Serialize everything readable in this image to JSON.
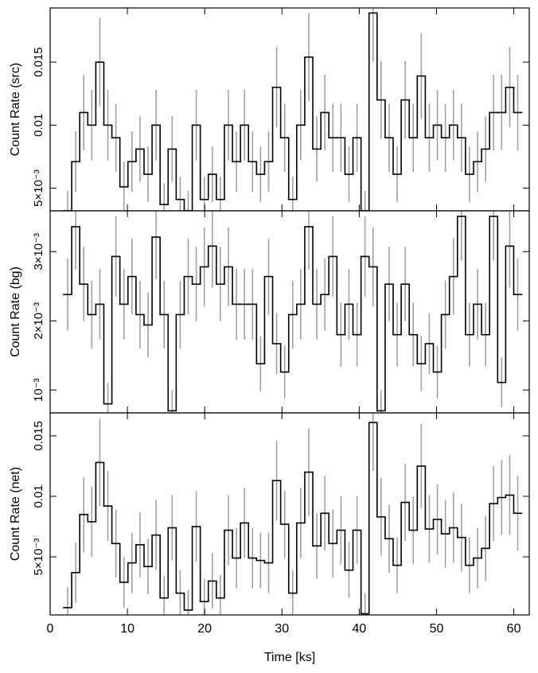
{
  "chart_data": [
    {
      "type": "step",
      "ylabel": "Count Rate (src)",
      "color": "#000000",
      "error_color": "#a0a0a0",
      "xlim": [
        0,
        62
      ],
      "xticks": [
        0,
        10,
        20,
        30,
        40,
        50,
        60
      ],
      "ylim": [
        0.0032,
        0.0193
      ],
      "yticks": [
        {
          "value": 0.005,
          "label": "5×10⁻³"
        },
        0.01,
        0.015
      ],
      "x": [
        2.27,
        3.31,
        4.35,
        5.39,
        6.43,
        7.47,
        8.51,
        9.55,
        10.59,
        11.63,
        12.67,
        13.71,
        14.75,
        15.79,
        16.83,
        17.87,
        18.91,
        19.95,
        20.99,
        22.03,
        23.07,
        24.11,
        25.15,
        26.19,
        27.23,
        28.27,
        29.31,
        30.35,
        31.39,
        32.43,
        33.47,
        34.51,
        35.55,
        36.59,
        37.63,
        38.67,
        39.71,
        40.75,
        41.79,
        42.83,
        43.87,
        44.91,
        45.95,
        46.99,
        48.03,
        49.07,
        50.11,
        51.15,
        52.19,
        53.23,
        54.27,
        55.31,
        56.35,
        57.39,
        58.43,
        59.47,
        60.51
      ],
      "values": [
        0.0032,
        0.0071,
        0.011,
        0.01,
        0.015,
        0.01,
        0.009,
        0.0051,
        0.0071,
        0.0081,
        0.0061,
        0.01,
        0.0037,
        0.0081,
        0.0041,
        0.0032,
        0.01,
        0.0041,
        0.0061,
        0.0041,
        0.01,
        0.0071,
        0.01,
        0.0071,
        0.0061,
        0.0071,
        0.013,
        0.009,
        0.0041,
        0.01,
        0.0154,
        0.0081,
        0.011,
        0.009,
        0.009,
        0.0061,
        0.009,
        0.0032,
        0.0189,
        0.012,
        0.009,
        0.0061,
        0.012,
        0.009,
        0.0139,
        0.009,
        0.01,
        0.009,
        0.01,
        0.009,
        0.0061,
        0.0071,
        0.0081,
        0.011,
        0.011,
        0.013,
        0.011
      ],
      "errors": [
        0.0016,
        0.0024,
        0.003,
        0.0028,
        0.0035,
        0.0028,
        0.0027,
        0.002,
        0.0024,
        0.0026,
        0.0022,
        0.0028,
        0.0017,
        0.0026,
        0.0018,
        0.0016,
        0.0028,
        0.0018,
        0.0022,
        0.0018,
        0.0028,
        0.0024,
        0.0028,
        0.0024,
        0.0022,
        0.0024,
        0.0032,
        0.0027,
        0.0018,
        0.0028,
        0.0035,
        0.0026,
        0.003,
        0.0027,
        0.0027,
        0.0022,
        0.0027,
        0.0016,
        0.0039,
        0.0031,
        0.0027,
        0.0022,
        0.0031,
        0.0027,
        0.0034,
        0.0027,
        0.0028,
        0.0027,
        0.0028,
        0.0027,
        0.0022,
        0.0024,
        0.0026,
        0.003,
        0.003,
        0.0032,
        0.003
      ]
    },
    {
      "type": "step",
      "ylabel": "Count Rate (bg)",
      "color": "#000000",
      "error_color": "#a0a0a0",
      "xlim": [
        0,
        62
      ],
      "xticks": [
        0,
        10,
        20,
        30,
        40,
        50,
        60
      ],
      "ylim": [
        0.00067,
        0.00359
      ],
      "yticks": [
        {
          "value": 0.001,
          "label": "10⁻³"
        },
        {
          "value": 0.002,
          "label": "2×10⁻³"
        },
        {
          "value": 0.003,
          "label": "3×10⁻³"
        }
      ],
      "x": [
        2.27,
        3.31,
        4.35,
        5.39,
        6.43,
        7.47,
        8.51,
        9.55,
        10.59,
        11.63,
        12.67,
        13.71,
        14.75,
        15.79,
        16.83,
        17.87,
        18.91,
        19.95,
        20.99,
        22.03,
        23.07,
        24.11,
        25.15,
        26.19,
        27.23,
        28.27,
        29.31,
        30.35,
        31.39,
        32.43,
        33.47,
        34.51,
        35.55,
        36.59,
        37.63,
        38.67,
        39.71,
        40.75,
        41.79,
        42.83,
        43.87,
        44.91,
        45.95,
        46.99,
        48.03,
        49.07,
        50.11,
        51.15,
        52.19,
        53.23,
        54.27,
        55.31,
        56.35,
        57.39,
        58.43,
        59.47,
        60.51
      ],
      "values": [
        0.00238,
        0.00336,
        0.00253,
        0.00209,
        0.00224,
        0.0008,
        0.00293,
        0.00224,
        0.00264,
        0.00209,
        0.00194,
        0.00321,
        0.00209,
        0.0007,
        0.00209,
        0.00264,
        0.00253,
        0.00278,
        0.00308,
        0.00253,
        0.00278,
        0.00224,
        0.00224,
        0.00224,
        0.00138,
        0.00264,
        0.00167,
        0.00126,
        0.00209,
        0.00224,
        0.00336,
        0.00224,
        0.00238,
        0.00293,
        0.0018,
        0.00224,
        0.0018,
        0.00293,
        0.00278,
        0.0007,
        0.00253,
        0.0018,
        0.00253,
        0.0018,
        0.00138,
        0.00167,
        0.00126,
        0.00209,
        0.00264,
        0.00351,
        0.0018,
        0.00224,
        0.0018,
        0.00351,
        0.00111,
        0.00308,
        0.00238
      ],
      "errors": [
        0.00052,
        0.00062,
        0.00054,
        0.00049,
        0.00051,
        0.0003,
        0.00058,
        0.00051,
        0.00055,
        0.00049,
        0.00047,
        0.00061,
        0.00049,
        0.0003,
        0.00049,
        0.00055,
        0.00054,
        0.00057,
        0.0006,
        0.00054,
        0.00057,
        0.00051,
        0.00051,
        0.00051,
        0.0004,
        0.00055,
        0.00044,
        0.00038,
        0.00049,
        0.00051,
        0.00062,
        0.00051,
        0.00052,
        0.00058,
        0.00046,
        0.00051,
        0.00046,
        0.00058,
        0.00057,
        0.0003,
        0.00054,
        0.00046,
        0.00054,
        0.00046,
        0.0004,
        0.00044,
        0.00038,
        0.00049,
        0.00055,
        0.00064,
        0.00046,
        0.00051,
        0.00046,
        0.00064,
        0.00036,
        0.0006,
        0.00052
      ]
    },
    {
      "type": "step",
      "ylabel": "Count Rate (net)",
      "xlabel": "Time [ks]",
      "color": "#000000",
      "error_color": "#a0a0a0",
      "xlim": [
        0,
        62
      ],
      "xticks": [
        0,
        10,
        20,
        30,
        40,
        50,
        60
      ],
      "ylim": [
        0.0002,
        0.0169
      ],
      "yticks": [
        {
          "value": 0.005,
          "label": "5×10⁻³"
        },
        0.01,
        0.015
      ],
      "x": [
        2.27,
        3.31,
        4.35,
        5.39,
        6.43,
        7.47,
        8.51,
        9.55,
        10.59,
        11.63,
        12.67,
        13.71,
        14.75,
        15.79,
        16.83,
        17.87,
        18.91,
        19.95,
        20.99,
        22.03,
        23.07,
        24.11,
        25.15,
        26.19,
        27.23,
        28.27,
        29.31,
        30.35,
        31.39,
        32.43,
        33.47,
        34.51,
        35.55,
        36.59,
        37.63,
        38.67,
        39.71,
        40.75,
        41.79,
        42.83,
        43.87,
        44.91,
        45.95,
        46.99,
        48.03,
        49.07,
        50.11,
        51.15,
        52.19,
        53.23,
        54.27,
        55.31,
        56.35,
        57.39,
        58.43,
        59.47,
        60.51
      ],
      "values": [
        0.0008,
        0.0037,
        0.0085,
        0.0079,
        0.0128,
        0.0092,
        0.0061,
        0.0029,
        0.0045,
        0.006,
        0.0042,
        0.0068,
        0.0016,
        0.0074,
        0.002,
        0.0006,
        0.0075,
        0.0013,
        0.003,
        0.0016,
        0.0072,
        0.0049,
        0.0078,
        0.0049,
        0.0047,
        0.0045,
        0.0113,
        0.0077,
        0.002,
        0.0078,
        0.012,
        0.0059,
        0.0086,
        0.0061,
        0.0072,
        0.0039,
        0.0072,
        0.0003,
        0.0161,
        0.0083,
        0.0065,
        0.0043,
        0.0095,
        0.0072,
        0.0125,
        0.0073,
        0.0081,
        0.0069,
        0.0074,
        0.0066,
        0.0043,
        0.0049,
        0.0057,
        0.0094,
        0.0099,
        0.0101,
        0.0086
      ],
      "errors": [
        0.0017,
        0.0025,
        0.0031,
        0.0029,
        0.0036,
        0.0029,
        0.0028,
        0.0021,
        0.0025,
        0.0027,
        0.0023,
        0.0029,
        0.0018,
        0.0027,
        0.0019,
        0.0017,
        0.0029,
        0.0019,
        0.0023,
        0.0019,
        0.0029,
        0.0025,
        0.0029,
        0.0025,
        0.0023,
        0.0025,
        0.0033,
        0.0028,
        0.0019,
        0.0029,
        0.0036,
        0.0027,
        0.0031,
        0.0028,
        0.0028,
        0.0023,
        0.0028,
        0.0017,
        0.004,
        0.0032,
        0.0028,
        0.0023,
        0.0032,
        0.0028,
        0.0035,
        0.0028,
        0.0029,
        0.0028,
        0.0029,
        0.0028,
        0.0023,
        0.0025,
        0.0027,
        0.0031,
        0.0031,
        0.0033,
        0.0031
      ]
    }
  ]
}
